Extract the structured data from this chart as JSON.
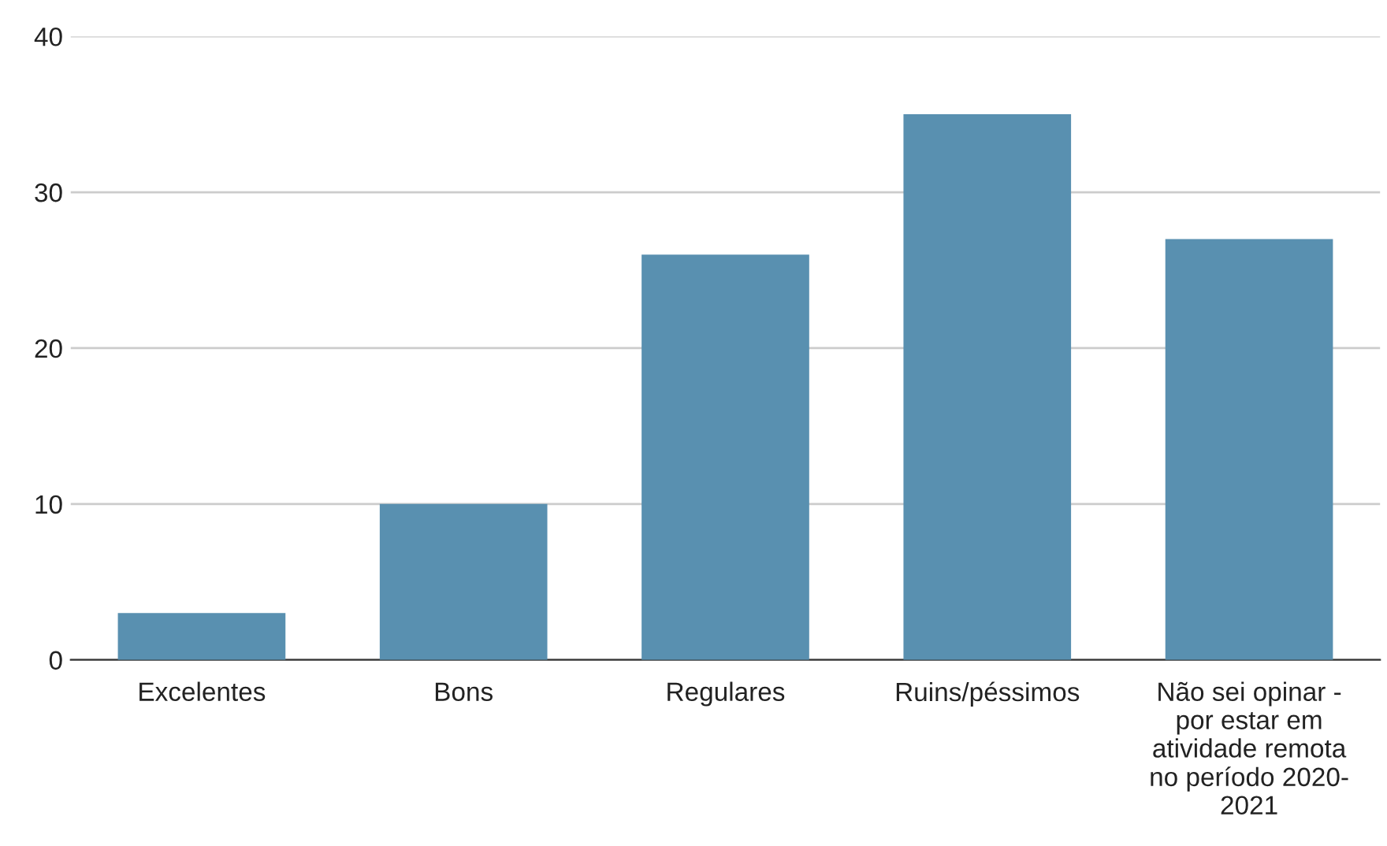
{
  "chart_data": {
    "type": "bar",
    "categories": [
      "Excelentes",
      "Bons",
      "Regulares",
      "Ruins/péssimos",
      "Não sei opinar -\npor estar em\natividade remota\nno período 2020-\n2021"
    ],
    "values": [
      3,
      10,
      26,
      35,
      27
    ],
    "color": "#5990b0",
    "ylim": [
      0,
      40
    ],
    "yticks": [
      0,
      10,
      20,
      30,
      40
    ],
    "grid": "y",
    "legend": false
  }
}
